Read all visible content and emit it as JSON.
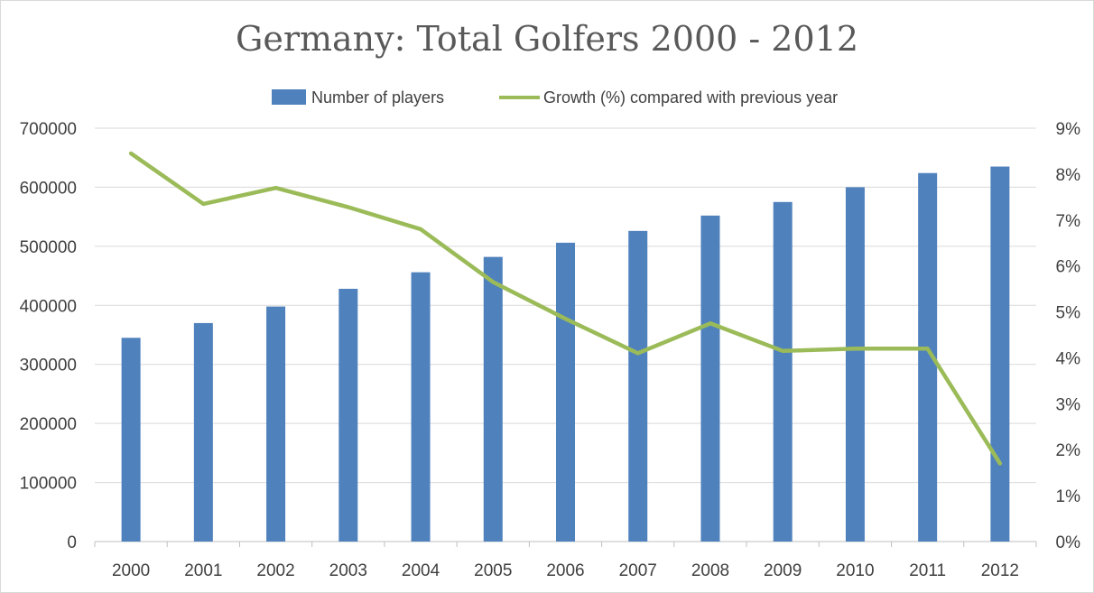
{
  "chart_data": {
    "type": "bar",
    "title": "Germany: Total Golfers 2000 - 2012",
    "categories": [
      "2000",
      "2001",
      "2002",
      "2003",
      "2004",
      "2005",
      "2006",
      "2007",
      "2008",
      "2009",
      "2010",
      "2011",
      "2012"
    ],
    "series": [
      {
        "name": "Number of players",
        "type": "bar",
        "axis": "left",
        "color": "#4f81bd",
        "values": [
          345000,
          370000,
          398000,
          428000,
          456000,
          482000,
          506000,
          526000,
          552000,
          575000,
          600000,
          624000,
          635000
        ]
      },
      {
        "name": "Growth (%) compared with previous year",
        "type": "line",
        "axis": "right",
        "color": "#9bbb59",
        "values": [
          8.45,
          7.35,
          7.7,
          7.28,
          6.8,
          5.65,
          4.85,
          4.1,
          4.75,
          4.15,
          4.2,
          4.2,
          1.7
        ]
      }
    ],
    "y_left": {
      "min": 0,
      "max": 700000,
      "ticks": [
        "0",
        "100000",
        "200000",
        "300000",
        "400000",
        "500000",
        "600000",
        "700000"
      ]
    },
    "y_right": {
      "min": 0,
      "max": 9,
      "ticks": [
        "0%",
        "1%",
        "2%",
        "3%",
        "4%",
        "5%",
        "6%",
        "7%",
        "8%",
        "9%"
      ]
    },
    "grid": true,
    "legend_position": "top"
  }
}
